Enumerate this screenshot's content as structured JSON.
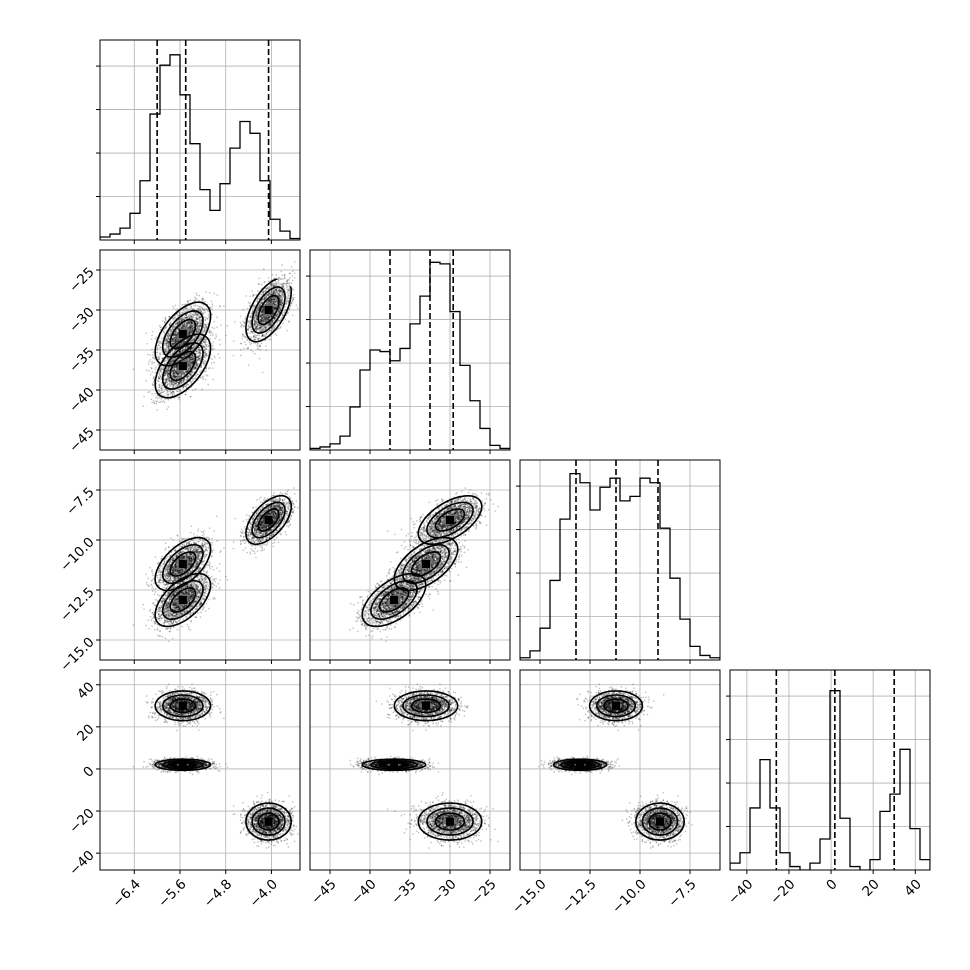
{
  "chart_data": {
    "type": "corner",
    "grid": true,
    "parameters": [
      {
        "id": "p0",
        "range": [
          -7.0,
          -3.5
        ],
        "tick_values": [
          -6.4,
          -5.6,
          -4.8,
          -4.0
        ],
        "tick_labels": [
          "−6.4",
          "−5.6",
          "−4.8",
          "−4.0"
        ],
        "quantiles": [
          -6.0,
          -5.5,
          -4.05
        ],
        "hist_bins_edges": [
          -7.0,
          -3.5
        ],
        "hist_counts": [
          2,
          4,
          8,
          18,
          40,
          85,
          118,
          125,
          98,
          65,
          34,
          20,
          38,
          62,
          80,
          72,
          40,
          14,
          6,
          1
        ],
        "hist_max": 135
      },
      {
        "id": "p1",
        "range": [
          -47.5,
          -22.5
        ],
        "tick_values": [
          -45,
          -40,
          -35,
          -30,
          -25
        ],
        "tick_labels": [
          "−45",
          "−40",
          "−35",
          "−30",
          "−25"
        ],
        "quantiles": [
          -37.5,
          -32.5,
          -29.6
        ],
        "hist_bins_edges": [
          -47.5,
          -22.5
        ],
        "hist_counts": [
          1,
          2,
          4,
          9,
          28,
          52,
          65,
          64,
          58,
          66,
          82,
          100,
          122,
          121,
          90,
          55,
          32,
          14,
          3,
          1
        ],
        "hist_max": 130
      },
      {
        "id": "p2",
        "range": [
          -16.0,
          -6.0
        ],
        "tick_values": [
          -15.0,
          -12.5,
          -10.0,
          -7.5
        ],
        "tick_labels": [
          "−15.0",
          "−12.5",
          "−10.0",
          "−7.5"
        ],
        "quantiles": [
          -13.2,
          -11.2,
          -9.1
        ],
        "hist_bins_edges": [
          -16.0,
          -6.0
        ],
        "hist_counts": [
          1,
          4,
          14,
          35,
          62,
          82,
          78,
          66,
          76,
          80,
          70,
          72,
          80,
          78,
          58,
          36,
          18,
          6,
          2,
          1
        ],
        "hist_max": 88
      },
      {
        "id": "p3",
        "range": [
          -48,
          47
        ],
        "tick_values": [
          -40,
          -20,
          0,
          20,
          40
        ],
        "tick_labels": [
          "−40",
          "−20",
          "0",
          "20",
          "40"
        ],
        "quantiles": [
          -26,
          1.8,
          30
        ],
        "hist_bins_edges": [
          -48,
          47
        ],
        "hist_counts": [
          2,
          5,
          18,
          32,
          18,
          5,
          1,
          0,
          2,
          9,
          52,
          15,
          1,
          0,
          3,
          17,
          22,
          35,
          12,
          3
        ],
        "hist_max": 58
      }
    ],
    "modes": [
      {
        "mean": [
          -5.55,
          -33.0,
          -11.2,
          30
        ],
        "sd": [
          0.22,
          1.8,
          0.6,
          3.2
        ]
      },
      {
        "mean": [
          -5.55,
          -37.0,
          -13.0,
          2
        ],
        "sd": [
          0.22,
          1.8,
          0.6,
          1.2
        ]
      },
      {
        "mean": [
          -4.05,
          -30.0,
          -9.0,
          -25
        ],
        "sd": [
          0.18,
          1.8,
          0.55,
          4.0
        ]
      }
    ]
  }
}
